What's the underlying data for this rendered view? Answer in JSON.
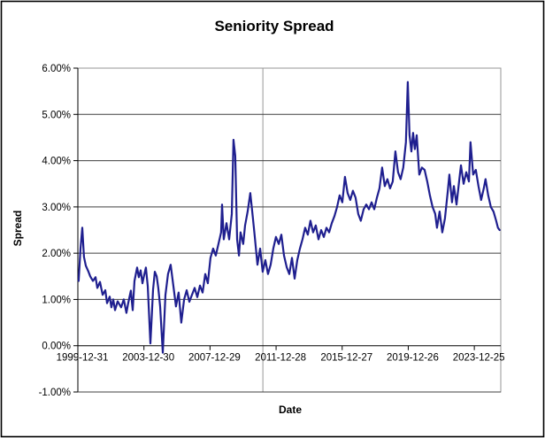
{
  "frame": {
    "background": "#ffffff",
    "border_color": "#000000",
    "plot_border_color": "#969696",
    "gridline_color": "#404040",
    "axis_color": "#000000"
  },
  "chart_data": {
    "type": "line",
    "title": "Seniority Spread",
    "xlabel": "Date",
    "ylabel": "Spread",
    "legend": "none",
    "x_axis": {
      "min_year": 2000.0,
      "max_year": 2025.6,
      "tick_years": [
        2000,
        2004,
        2008,
        2012,
        2016,
        2020,
        2024
      ],
      "tick_labels": [
        "1999-12-31",
        "2003-12-30",
        "2007-12-29",
        "2011-12-28",
        "2015-12-27",
        "2019-12-26",
        "2023-12-25"
      ]
    },
    "y_axis": {
      "min": -1.0,
      "max": 6.0,
      "ticks": [
        6,
        5,
        4,
        3,
        2,
        1,
        0,
        -1
      ],
      "tick_labels": [
        "6.00%",
        "5.00%",
        "4.00%",
        "3.00%",
        "2.00%",
        "1.00%",
        "0.00%",
        "-1.00%"
      ],
      "unit": "percent"
    },
    "grid": {
      "horizontal": true,
      "vertical": false,
      "single_vertical_line_year": 2011.2
    },
    "series": [
      {
        "name": "Seniority Spread",
        "color": "#1F1F8F",
        "points": [
          [
            2000.05,
            1.4
          ],
          [
            2000.16,
            2.1
          ],
          [
            2000.27,
            2.55
          ],
          [
            2000.37,
            1.92
          ],
          [
            2000.48,
            1.73
          ],
          [
            2000.64,
            1.6
          ],
          [
            2000.75,
            1.5
          ],
          [
            2000.91,
            1.4
          ],
          [
            2001.07,
            1.48
          ],
          [
            2001.18,
            1.25
          ],
          [
            2001.34,
            1.38
          ],
          [
            2001.5,
            1.1
          ],
          [
            2001.66,
            1.2
          ],
          [
            2001.77,
            0.92
          ],
          [
            2001.93,
            1.06
          ],
          [
            2002.03,
            0.83
          ],
          [
            2002.14,
            1.0
          ],
          [
            2002.25,
            0.77
          ],
          [
            2002.41,
            0.96
          ],
          [
            2002.62,
            0.83
          ],
          [
            2002.78,
            1.0
          ],
          [
            2002.94,
            0.71
          ],
          [
            2003.05,
            0.92
          ],
          [
            2003.21,
            1.19
          ],
          [
            2003.32,
            0.77
          ],
          [
            2003.43,
            1.4
          ],
          [
            2003.59,
            1.69
          ],
          [
            2003.69,
            1.48
          ],
          [
            2003.8,
            1.63
          ],
          [
            2003.91,
            1.35
          ],
          [
            2004.02,
            1.54
          ],
          [
            2004.12,
            1.69
          ],
          [
            2004.23,
            1.29
          ],
          [
            2004.39,
            0.05
          ],
          [
            2004.55,
            1.21
          ],
          [
            2004.66,
            1.6
          ],
          [
            2004.77,
            1.5
          ],
          [
            2004.87,
            1.25
          ],
          [
            2004.98,
            0.85
          ],
          [
            2005.14,
            -0.15
          ],
          [
            2005.3,
            1.1
          ],
          [
            2005.46,
            1.55
          ],
          [
            2005.62,
            1.75
          ],
          [
            2005.78,
            1.3
          ],
          [
            2005.94,
            0.85
          ],
          [
            2006.1,
            1.15
          ],
          [
            2006.26,
            0.5
          ],
          [
            2006.43,
            1.0
          ],
          [
            2006.59,
            1.2
          ],
          [
            2006.75,
            0.95
          ],
          [
            2006.91,
            1.1
          ],
          [
            2007.07,
            1.25
          ],
          [
            2007.23,
            1.05
          ],
          [
            2007.39,
            1.3
          ],
          [
            2007.55,
            1.15
          ],
          [
            2007.71,
            1.55
          ],
          [
            2007.87,
            1.35
          ],
          [
            2008.03,
            1.9
          ],
          [
            2008.19,
            2.1
          ],
          [
            2008.35,
            1.95
          ],
          [
            2008.51,
            2.2
          ],
          [
            2008.67,
            2.45
          ],
          [
            2008.73,
            3.05
          ],
          [
            2008.83,
            2.3
          ],
          [
            2009.0,
            2.65
          ],
          [
            2009.16,
            2.3
          ],
          [
            2009.32,
            2.85
          ],
          [
            2009.42,
            4.45
          ],
          [
            2009.53,
            4.1
          ],
          [
            2009.64,
            2.3
          ],
          [
            2009.75,
            1.95
          ],
          [
            2009.85,
            2.45
          ],
          [
            2010.01,
            2.2
          ],
          [
            2010.12,
            2.6
          ],
          [
            2010.28,
            2.9
          ],
          [
            2010.44,
            3.3
          ],
          [
            2010.6,
            2.75
          ],
          [
            2010.71,
            2.35
          ],
          [
            2010.87,
            1.75
          ],
          [
            2011.03,
            2.1
          ],
          [
            2011.19,
            1.6
          ],
          [
            2011.35,
            1.85
          ],
          [
            2011.51,
            1.55
          ],
          [
            2011.67,
            1.75
          ],
          [
            2011.83,
            2.1
          ],
          [
            2011.99,
            2.35
          ],
          [
            2012.16,
            2.2
          ],
          [
            2012.32,
            2.4
          ],
          [
            2012.48,
            1.95
          ],
          [
            2012.64,
            1.7
          ],
          [
            2012.8,
            1.55
          ],
          [
            2012.96,
            1.9
          ],
          [
            2013.12,
            1.45
          ],
          [
            2013.28,
            1.85
          ],
          [
            2013.44,
            2.1
          ],
          [
            2013.6,
            2.3
          ],
          [
            2013.76,
            2.55
          ],
          [
            2013.92,
            2.4
          ],
          [
            2014.08,
            2.7
          ],
          [
            2014.24,
            2.45
          ],
          [
            2014.4,
            2.6
          ],
          [
            2014.57,
            2.3
          ],
          [
            2014.73,
            2.5
          ],
          [
            2014.89,
            2.35
          ],
          [
            2015.05,
            2.55
          ],
          [
            2015.21,
            2.45
          ],
          [
            2015.37,
            2.65
          ],
          [
            2015.53,
            2.8
          ],
          [
            2015.69,
            3.0
          ],
          [
            2015.85,
            3.25
          ],
          [
            2016.01,
            3.1
          ],
          [
            2016.17,
            3.65
          ],
          [
            2016.33,
            3.3
          ],
          [
            2016.49,
            3.15
          ],
          [
            2016.65,
            3.35
          ],
          [
            2016.81,
            3.2
          ],
          [
            2016.97,
            2.85
          ],
          [
            2017.13,
            2.7
          ],
          [
            2017.3,
            2.95
          ],
          [
            2017.46,
            3.05
          ],
          [
            2017.62,
            2.95
          ],
          [
            2017.78,
            3.1
          ],
          [
            2017.94,
            2.95
          ],
          [
            2018.1,
            3.2
          ],
          [
            2018.26,
            3.4
          ],
          [
            2018.42,
            3.85
          ],
          [
            2018.58,
            3.45
          ],
          [
            2018.74,
            3.6
          ],
          [
            2018.9,
            3.4
          ],
          [
            2019.06,
            3.55
          ],
          [
            2019.22,
            4.2
          ],
          [
            2019.38,
            3.75
          ],
          [
            2019.54,
            3.6
          ],
          [
            2019.7,
            3.85
          ],
          [
            2019.86,
            4.4
          ],
          [
            2019.97,
            5.7
          ],
          [
            2020.08,
            4.55
          ],
          [
            2020.19,
            4.2
          ],
          [
            2020.29,
            4.6
          ],
          [
            2020.4,
            4.25
          ],
          [
            2020.51,
            4.55
          ],
          [
            2020.67,
            3.7
          ],
          [
            2020.83,
            3.85
          ],
          [
            2020.99,
            3.8
          ],
          [
            2021.15,
            3.55
          ],
          [
            2021.31,
            3.25
          ],
          [
            2021.47,
            3.0
          ],
          [
            2021.63,
            2.85
          ],
          [
            2021.74,
            2.55
          ],
          [
            2021.9,
            2.9
          ],
          [
            2022.06,
            2.45
          ],
          [
            2022.22,
            2.75
          ],
          [
            2022.38,
            3.3
          ],
          [
            2022.49,
            3.7
          ],
          [
            2022.65,
            3.1
          ],
          [
            2022.76,
            3.45
          ],
          [
            2022.92,
            3.05
          ],
          [
            2023.08,
            3.55
          ],
          [
            2023.19,
            3.9
          ],
          [
            2023.35,
            3.5
          ],
          [
            2023.51,
            3.75
          ],
          [
            2023.67,
            3.55
          ],
          [
            2023.77,
            4.4
          ],
          [
            2023.93,
            3.7
          ],
          [
            2024.09,
            3.8
          ],
          [
            2024.25,
            3.45
          ],
          [
            2024.41,
            3.15
          ],
          [
            2024.57,
            3.4
          ],
          [
            2024.68,
            3.6
          ],
          [
            2024.84,
            3.25
          ],
          [
            2025.0,
            3.0
          ],
          [
            2025.16,
            2.9
          ],
          [
            2025.32,
            2.7
          ],
          [
            2025.43,
            2.55
          ],
          [
            2025.53,
            2.5
          ]
        ]
      }
    ]
  }
}
